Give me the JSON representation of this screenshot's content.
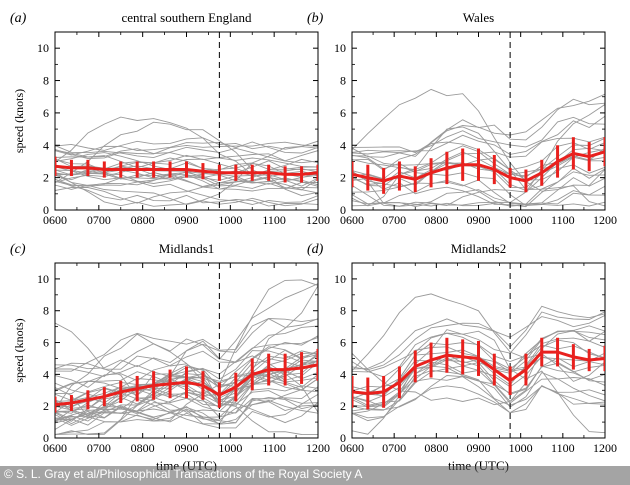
{
  "chart_data": [
    {
      "type": "line",
      "panel_label": "(a)",
      "title": "central southern England",
      "xlabel": "",
      "ylabel": "speed (knots)",
      "xlim": [
        600,
        1200
      ],
      "ylim": [
        0,
        11
      ],
      "x_tick_labels": [
        "0600",
        "0700",
        "0800",
        "0900",
        "1000",
        "1100",
        "1200"
      ],
      "y_tick_labels": [
        "0",
        "2",
        "4",
        "6",
        "8",
        "10"
      ],
      "divider_time": "0945",
      "mean_series": {
        "name": "ensemble mean",
        "values": [
          2.7,
          2.6,
          2.6,
          2.5,
          2.5,
          2.5,
          2.5,
          2.5,
          2.5,
          2.4,
          2.3,
          2.3,
          2.3,
          2.3,
          2.2,
          2.2,
          2.3
        ]
      },
      "error_halfwidth": [
        0.6,
        0.5,
        0.5,
        0.5,
        0.5,
        0.5,
        0.5,
        0.5,
        0.5,
        0.5,
        0.5,
        0.5,
        0.5,
        0.5,
        0.5,
        0.5,
        0.5
      ]
    },
    {
      "type": "line",
      "panel_label": "(b)",
      "title": "Wales",
      "xlabel": "",
      "ylabel": "",
      "xlim": [
        600,
        1200
      ],
      "ylim": [
        0,
        11
      ],
      "x_tick_labels": [
        "0600",
        "0700",
        "0800",
        "0900",
        "1000",
        "1100",
        "1200"
      ],
      "y_tick_labels": [
        "0",
        "2",
        "4",
        "6",
        "8",
        "10"
      ],
      "divider_time": "0945",
      "mean_series": {
        "name": "ensemble mean",
        "values": [
          2.2,
          2.0,
          1.8,
          2.1,
          1.9,
          2.3,
          2.6,
          2.8,
          2.8,
          2.5,
          2.0,
          1.8,
          2.3,
          3.0,
          3.5,
          3.3,
          3.6
        ]
      },
      "error_halfwidth": [
        0.8,
        0.8,
        0.8,
        0.9,
        0.8,
        0.9,
        1.0,
        1.0,
        1.0,
        0.9,
        0.6,
        0.7,
        0.8,
        1.0,
        1.0,
        0.9,
        0.9
      ]
    },
    {
      "type": "line",
      "panel_label": "(c)",
      "title": "Midlands1",
      "xlabel": "time (UTC)",
      "ylabel": "speed (knots)",
      "xlim": [
        600,
        1200
      ],
      "ylim": [
        0,
        11
      ],
      "x_tick_labels": [
        "0600",
        "0700",
        "0800",
        "0900",
        "1000",
        "1100",
        "1200"
      ],
      "y_tick_labels": [
        "0",
        "2",
        "4",
        "6",
        "8",
        "10"
      ],
      "divider_time": "0945",
      "mean_series": {
        "name": "ensemble mean",
        "values": [
          2.1,
          2.2,
          2.4,
          2.6,
          2.9,
          3.1,
          3.3,
          3.4,
          3.5,
          3.3,
          2.7,
          3.2,
          4.0,
          4.3,
          4.3,
          4.4,
          4.6
        ]
      },
      "error_halfwidth": [
        0.5,
        0.5,
        0.6,
        0.6,
        0.7,
        0.8,
        0.9,
        0.9,
        1.0,
        0.9,
        0.8,
        0.9,
        1.0,
        1.0,
        1.0,
        1.0,
        1.0
      ]
    },
    {
      "type": "line",
      "panel_label": "(d)",
      "title": "Midlands2",
      "xlabel": "time (UTC)",
      "ylabel": "",
      "xlim": [
        600,
        1200
      ],
      "ylim": [
        0,
        11
      ],
      "x_tick_labels": [
        "0600",
        "0700",
        "0800",
        "0900",
        "1000",
        "1100",
        "1200"
      ],
      "y_tick_labels": [
        "0",
        "2",
        "4",
        "6",
        "8",
        "10"
      ],
      "divider_time": "0945",
      "mean_series": {
        "name": "ensemble mean",
        "values": [
          2.9,
          2.8,
          2.9,
          3.5,
          4.5,
          4.9,
          5.2,
          5.1,
          5.0,
          4.3,
          3.6,
          4.3,
          5.4,
          5.4,
          5.1,
          4.9,
          5.0
        ]
      },
      "error_halfwidth": [
        1.0,
        1.0,
        1.0,
        1.0,
        1.0,
        1.1,
        1.1,
        1.1,
        1.1,
        1.0,
        0.9,
        1.0,
        0.9,
        0.9,
        0.8,
        0.7,
        0.8
      ]
    }
  ],
  "credit": "© S. L. Gray et al/Philosophical Transactions of the Royal Society A",
  "colors": {
    "mean": "#e8211e",
    "members": "#9a9a9a",
    "axis": "#000000"
  }
}
